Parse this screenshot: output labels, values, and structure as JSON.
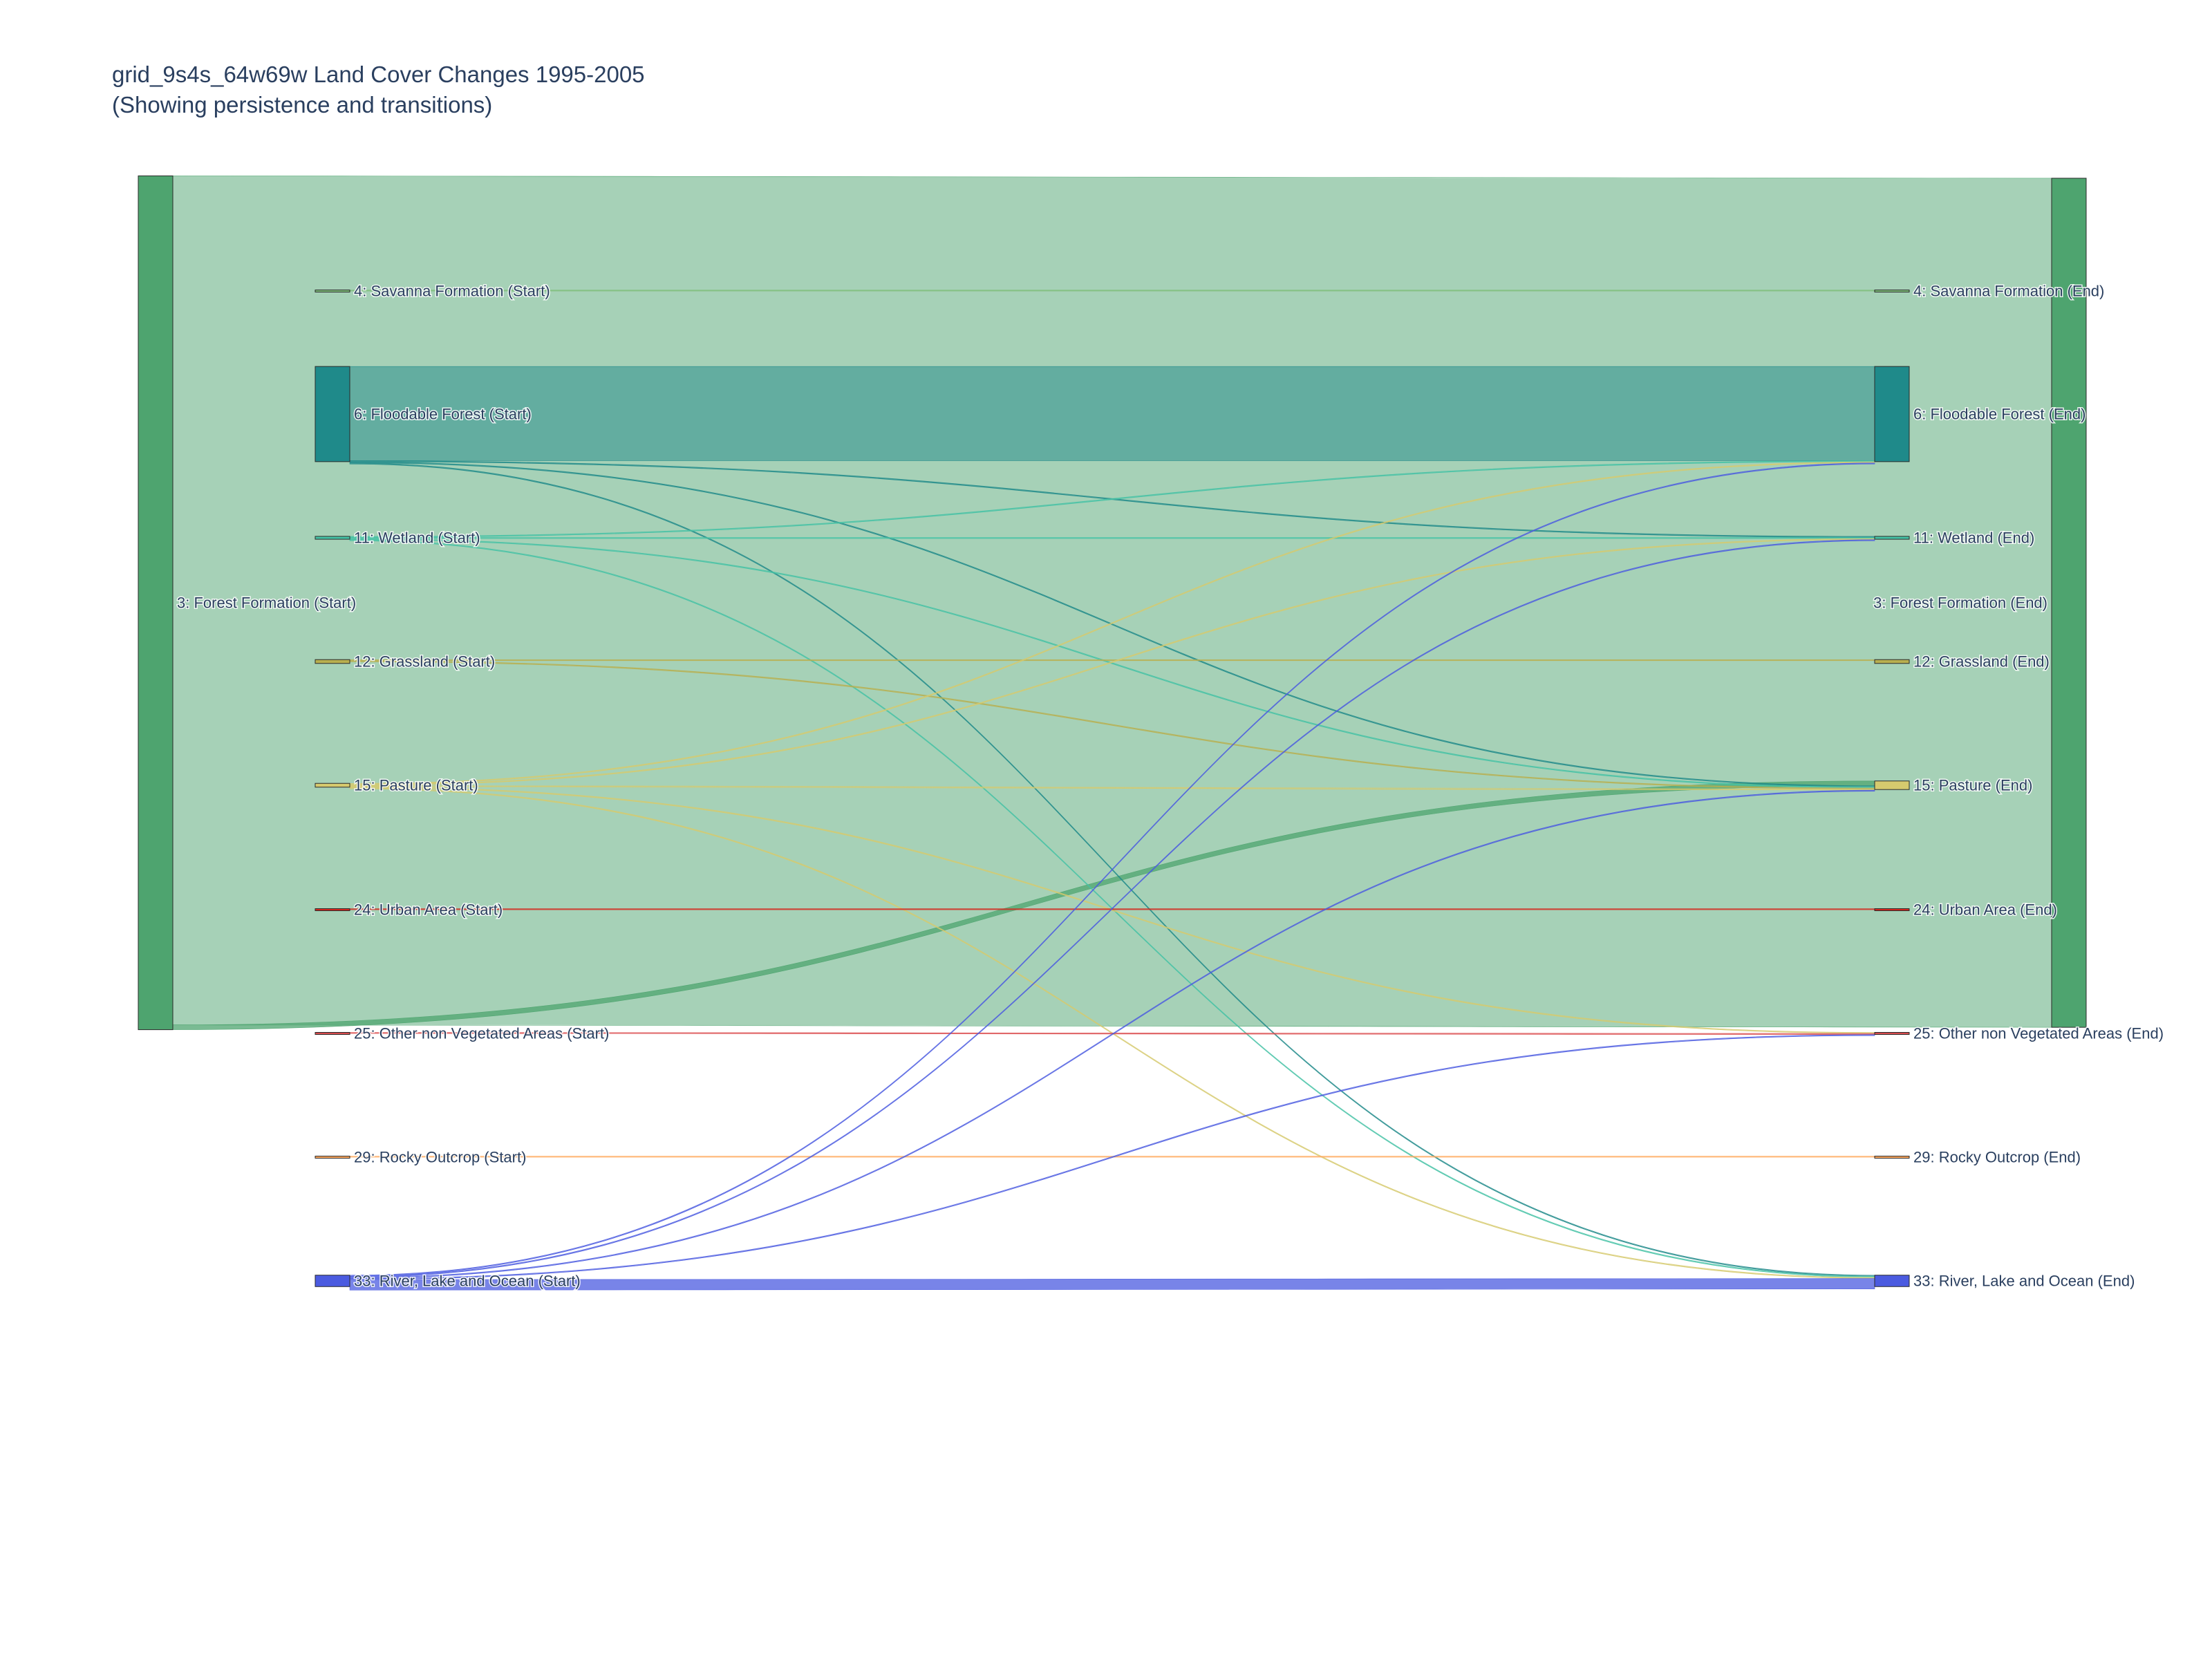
{
  "title": "grid_9s4s_64w69w Land Cover Changes 1995-2005",
  "subtitle": "(Showing persistence and transitions)",
  "chart_data": {
    "type": "sankey",
    "units": "share of total pixels (approx.)",
    "nodes": [
      {
        "id": "s3",
        "label": "3: Forest Formation (Start)",
        "color": "#4ea46f",
        "value": 0.897
      },
      {
        "id": "s4",
        "label": "4: Savanna Formation (Start)",
        "color": "#7fbf7b",
        "value": 0.0005
      },
      {
        "id": "s6",
        "label": "6: Floodable Forest (Start)",
        "color": "#1f8a8a",
        "value": 0.1
      },
      {
        "id": "s11",
        "label": "11: Wetland (Start)",
        "color": "#45c2a5",
        "value": 0.003
      },
      {
        "id": "s12",
        "label": "12: Grassland (Start)",
        "color": "#b8af4f",
        "value": 0.004
      },
      {
        "id": "s15",
        "label": "15: Pasture (Start)",
        "color": "#d6ca6e",
        "value": 0.004
      },
      {
        "id": "s24",
        "label": "24: Urban Area (Start)",
        "color": "#d4271e",
        "value": 0.0005
      },
      {
        "id": "s25",
        "label": "25: Other non Vegetated Areas (Start)",
        "color": "#db4d4f",
        "value": 0.0005
      },
      {
        "id": "s29",
        "label": "29: Rocky Outcrop (Start)",
        "color": "#ffaa5f",
        "value": 0.0002
      },
      {
        "id": "s33",
        "label": "33: River, Lake and Ocean (Start)",
        "color": "#4b5be0",
        "value": 0.012
      },
      {
        "id": "e3",
        "label": "3: Forest Formation (End)",
        "color": "#4ea46f",
        "value": 0.892
      },
      {
        "id": "e4",
        "label": "4: Savanna Formation (End)",
        "color": "#7fbf7b",
        "value": 0.0005
      },
      {
        "id": "e6",
        "label": "6: Floodable Forest (End)",
        "color": "#1f8a8a",
        "value": 0.1
      },
      {
        "id": "e11",
        "label": "11: Wetland (End)",
        "color": "#45c2a5",
        "value": 0.003
      },
      {
        "id": "e12",
        "label": "12: Grassland (End)",
        "color": "#b8af4f",
        "value": 0.004
      },
      {
        "id": "e15",
        "label": "15: Pasture (End)",
        "color": "#d6ca6e",
        "value": 0.009
      },
      {
        "id": "e24",
        "label": "24: Urban Area (End)",
        "color": "#d4271e",
        "value": 0.0005
      },
      {
        "id": "e25",
        "label": "25: Other non Vegetated Areas (End)",
        "color": "#db4d4f",
        "value": 0.0005
      },
      {
        "id": "e29",
        "label": "29: Rocky Outcrop (End)",
        "color": "#ffaa5f",
        "value": 0.0002
      },
      {
        "id": "e33",
        "label": "33: River, Lake and Ocean (End)",
        "color": "#4b5be0",
        "value": 0.012
      }
    ],
    "links": [
      {
        "source": "s3",
        "target": "e3",
        "value": 0.892
      },
      {
        "source": "s3",
        "target": "e15",
        "value": 0.005
      },
      {
        "source": "s4",
        "target": "e4",
        "value": 0.0005
      },
      {
        "source": "s6",
        "target": "e6",
        "value": 0.099
      },
      {
        "source": "s6",
        "target": "e11",
        "value": 0.0003
      },
      {
        "source": "s6",
        "target": "e15",
        "value": 0.0003
      },
      {
        "source": "s6",
        "target": "e33",
        "value": 0.0003
      },
      {
        "source": "s11",
        "target": "e6",
        "value": 0.0002
      },
      {
        "source": "s11",
        "target": "e11",
        "value": 0.0002
      },
      {
        "source": "s11",
        "target": "e15",
        "value": 0.0002
      },
      {
        "source": "s11",
        "target": "e33",
        "value": 0.0002
      },
      {
        "source": "s12",
        "target": "e12",
        "value": 0.0004
      },
      {
        "source": "s12",
        "target": "e15",
        "value": 0.0002
      },
      {
        "source": "s15",
        "target": "e6",
        "value": 0.0002
      },
      {
        "source": "s15",
        "target": "e11",
        "value": 0.0002
      },
      {
        "source": "s15",
        "target": "e15",
        "value": 0.0003
      },
      {
        "source": "s15",
        "target": "e25",
        "value": 0.0002
      },
      {
        "source": "s15",
        "target": "e33",
        "value": 0.0002
      },
      {
        "source": "s24",
        "target": "e24",
        "value": 0.0003
      },
      {
        "source": "s25",
        "target": "e25",
        "value": 0.0003
      },
      {
        "source": "s29",
        "target": "e29",
        "value": 0.0002
      },
      {
        "source": "s33",
        "target": "e6",
        "value": 0.0006
      },
      {
        "source": "s33",
        "target": "e11",
        "value": 0.0003
      },
      {
        "source": "s33",
        "target": "e15",
        "value": 0.0003
      },
      {
        "source": "s33",
        "target": "e25",
        "value": 0.0003
      },
      {
        "source": "s33",
        "target": "e33",
        "value": 0.011
      }
    ]
  }
}
